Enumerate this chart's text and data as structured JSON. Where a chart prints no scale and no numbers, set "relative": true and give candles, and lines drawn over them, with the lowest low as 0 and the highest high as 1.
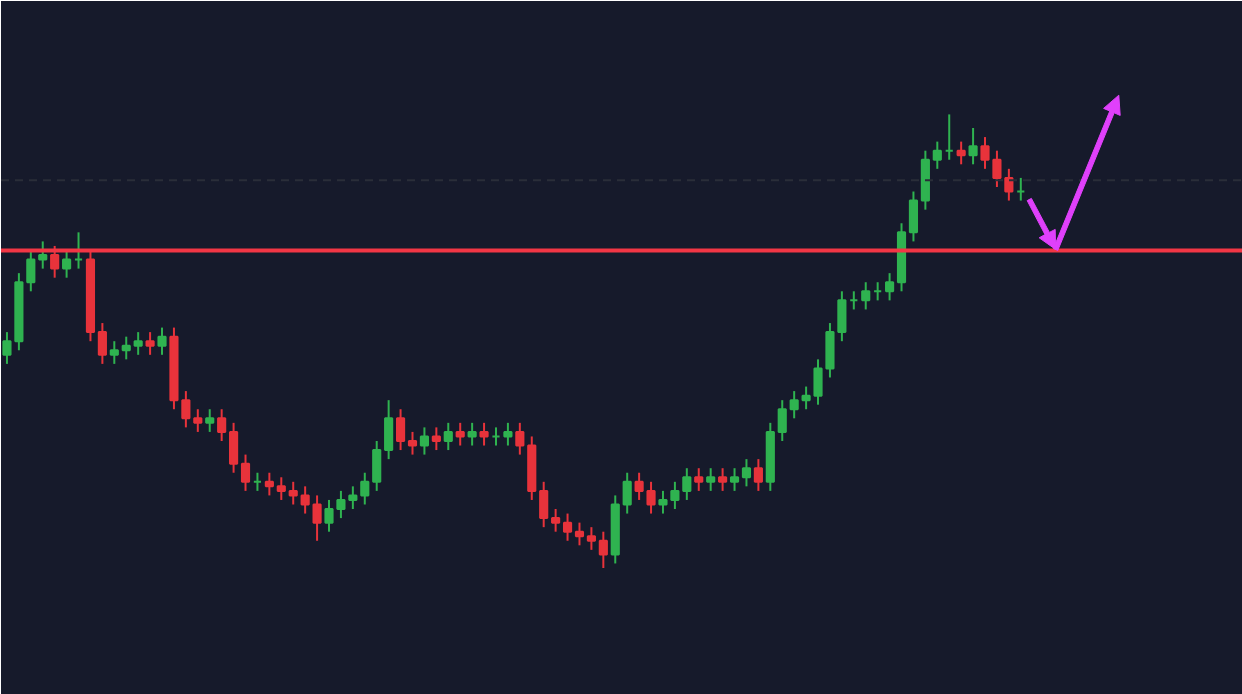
{
  "chart_data": {
    "type": "candlestick",
    "relative": true,
    "categories": [
      null,
      null,
      null,
      null,
      null,
      null,
      null,
      null,
      null,
      null,
      null,
      null,
      null,
      null,
      null,
      null,
      null,
      null,
      null,
      null,
      null,
      null,
      null,
      null,
      null,
      null,
      null,
      null,
      null,
      null,
      null,
      null,
      null,
      null,
      null,
      null,
      null,
      null,
      null,
      null,
      null,
      null,
      null,
      null,
      null,
      null,
      null,
      null,
      null,
      null,
      null,
      null,
      null,
      null,
      null,
      null,
      null,
      null,
      null,
      null,
      null,
      null,
      null,
      null,
      null,
      null,
      null,
      null,
      null,
      null,
      null,
      null,
      null,
      null,
      null,
      null,
      null,
      null,
      null,
      null,
      null,
      null,
      null,
      null,
      null,
      null
    ],
    "ohlc": [
      [
        0.47,
        0.52,
        0.45,
        0.5
      ],
      [
        0.5,
        0.65,
        0.48,
        0.63
      ],
      [
        0.63,
        0.7,
        0.61,
        0.68
      ],
      [
        0.68,
        0.72,
        0.66,
        0.69
      ],
      [
        0.69,
        0.71,
        0.64,
        0.66
      ],
      [
        0.66,
        0.7,
        0.64,
        0.68
      ],
      [
        0.68,
        0.74,
        0.66,
        0.68
      ],
      [
        0.68,
        0.7,
        0.5,
        0.52
      ],
      [
        0.52,
        0.54,
        0.45,
        0.47
      ],
      [
        0.47,
        0.5,
        0.45,
        0.48
      ],
      [
        0.48,
        0.51,
        0.46,
        0.49
      ],
      [
        0.49,
        0.52,
        0.47,
        0.5
      ],
      [
        0.5,
        0.52,
        0.47,
        0.49
      ],
      [
        0.49,
        0.53,
        0.47,
        0.51
      ],
      [
        0.51,
        0.53,
        0.35,
        0.37
      ],
      [
        0.37,
        0.39,
        0.31,
        0.33
      ],
      [
        0.33,
        0.35,
        0.3,
        0.32
      ],
      [
        0.32,
        0.35,
        0.3,
        0.33
      ],
      [
        0.33,
        0.35,
        0.28,
        0.3
      ],
      [
        0.3,
        0.32,
        0.21,
        0.23
      ],
      [
        0.23,
        0.25,
        0.17,
        0.19
      ],
      [
        0.19,
        0.21,
        0.17,
        0.19
      ],
      [
        0.19,
        0.21,
        0.16,
        0.18
      ],
      [
        0.18,
        0.2,
        0.15,
        0.17
      ],
      [
        0.17,
        0.19,
        0.14,
        0.16
      ],
      [
        0.16,
        0.18,
        0.12,
        0.14
      ],
      [
        0.14,
        0.16,
        0.06,
        0.1
      ],
      [
        0.1,
        0.15,
        0.08,
        0.13
      ],
      [
        0.13,
        0.17,
        0.11,
        0.15
      ],
      [
        0.15,
        0.18,
        0.13,
        0.16
      ],
      [
        0.16,
        0.21,
        0.14,
        0.19
      ],
      [
        0.19,
        0.28,
        0.17,
        0.26
      ],
      [
        0.26,
        0.37,
        0.24,
        0.33
      ],
      [
        0.33,
        0.35,
        0.26,
        0.28
      ],
      [
        0.28,
        0.3,
        0.25,
        0.27
      ],
      [
        0.27,
        0.31,
        0.25,
        0.29
      ],
      [
        0.29,
        0.31,
        0.26,
        0.28
      ],
      [
        0.28,
        0.32,
        0.26,
        0.3
      ],
      [
        0.3,
        0.32,
        0.27,
        0.29
      ],
      [
        0.29,
        0.32,
        0.27,
        0.3
      ],
      [
        0.3,
        0.32,
        0.27,
        0.29
      ],
      [
        0.29,
        0.31,
        0.27,
        0.29
      ],
      [
        0.29,
        0.32,
        0.27,
        0.3
      ],
      [
        0.3,
        0.32,
        0.25,
        0.27
      ],
      [
        0.27,
        0.29,
        0.15,
        0.17
      ],
      [
        0.17,
        0.19,
        0.09,
        0.11
      ],
      [
        0.11,
        0.13,
        0.08,
        0.1
      ],
      [
        0.1,
        0.12,
        0.06,
        0.08
      ],
      [
        0.08,
        0.1,
        0.05,
        0.07
      ],
      [
        0.07,
        0.09,
        0.04,
        0.06
      ],
      [
        0.06,
        0.08,
        0.0,
        0.03
      ],
      [
        0.03,
        0.16,
        0.01,
        0.14
      ],
      [
        0.14,
        0.21,
        0.12,
        0.19
      ],
      [
        0.19,
        0.21,
        0.15,
        0.17
      ],
      [
        0.17,
        0.19,
        0.12,
        0.14
      ],
      [
        0.14,
        0.17,
        0.12,
        0.15
      ],
      [
        0.15,
        0.19,
        0.13,
        0.17
      ],
      [
        0.17,
        0.22,
        0.15,
        0.2
      ],
      [
        0.2,
        0.22,
        0.17,
        0.19
      ],
      [
        0.19,
        0.22,
        0.17,
        0.2
      ],
      [
        0.2,
        0.22,
        0.17,
        0.19
      ],
      [
        0.19,
        0.22,
        0.17,
        0.2
      ],
      [
        0.2,
        0.24,
        0.18,
        0.22
      ],
      [
        0.22,
        0.24,
        0.17,
        0.19
      ],
      [
        0.19,
        0.32,
        0.17,
        0.3
      ],
      [
        0.3,
        0.37,
        0.28,
        0.35
      ],
      [
        0.35,
        0.39,
        0.33,
        0.37
      ],
      [
        0.37,
        0.4,
        0.35,
        0.38
      ],
      [
        0.38,
        0.46,
        0.36,
        0.44
      ],
      [
        0.44,
        0.54,
        0.42,
        0.52
      ],
      [
        0.52,
        0.61,
        0.5,
        0.59
      ],
      [
        0.59,
        0.61,
        0.57,
        0.59
      ],
      [
        0.59,
        0.63,
        0.57,
        0.61
      ],
      [
        0.61,
        0.63,
        0.59,
        0.61
      ],
      [
        0.61,
        0.65,
        0.59,
        0.63
      ],
      [
        0.63,
        0.76,
        0.61,
        0.74
      ],
      [
        0.74,
        0.83,
        0.72,
        0.81
      ],
      [
        0.81,
        0.92,
        0.79,
        0.9
      ],
      [
        0.9,
        0.94,
        0.88,
        0.92
      ],
      [
        0.92,
        1.0,
        0.9,
        0.92
      ],
      [
        0.92,
        0.94,
        0.89,
        0.91
      ],
      [
        0.91,
        0.97,
        0.89,
        0.93
      ],
      [
        0.93,
        0.95,
        0.88,
        0.9
      ],
      [
        0.9,
        0.92,
        0.84,
        0.86
      ],
      [
        0.86,
        0.88,
        0.81,
        0.83
      ],
      [
        0.83,
        0.86,
        0.81,
        0.83
      ]
    ],
    "ref_lines": [
      {
        "axis": "y",
        "value": 0.7,
        "color": "#f23645",
        "line_style": "solid"
      },
      {
        "axis": "y",
        "value": 0.855,
        "color": "#2a2e39",
        "line_style": "dashed"
      }
    ]
  }
}
